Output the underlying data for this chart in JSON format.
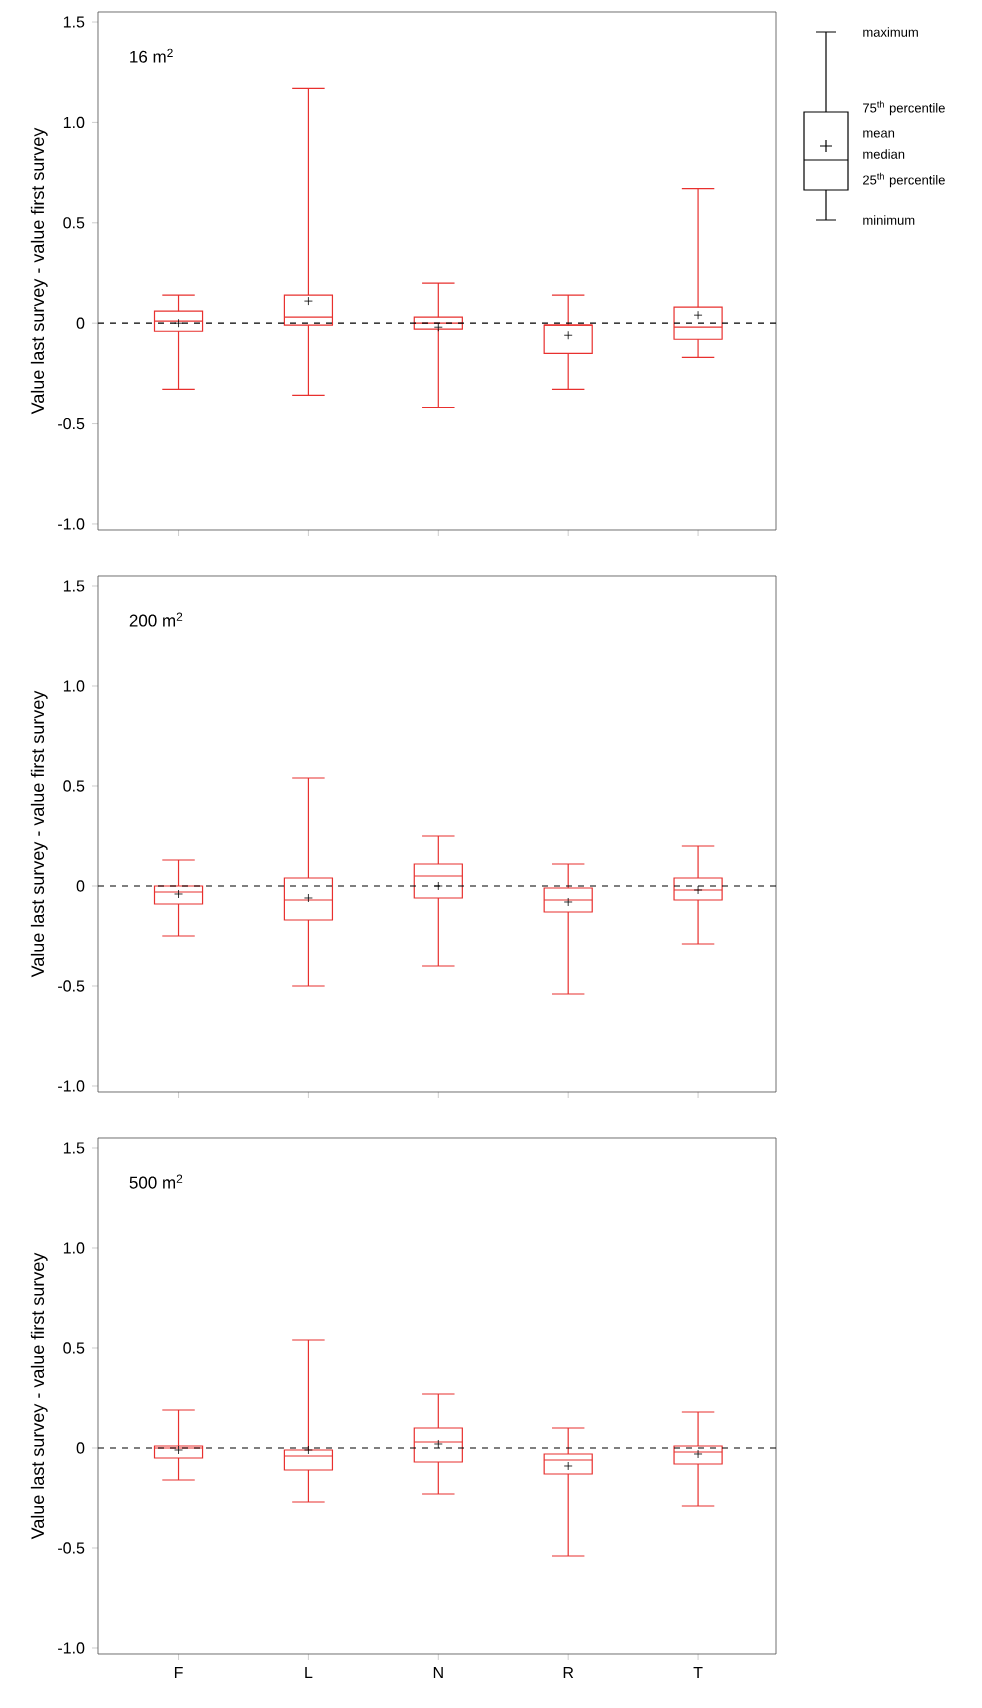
{
  "chart_data": [
    {
      "type": "box",
      "title": "16 m$^{2}$",
      "ylabel": "Value last survey - value first survey",
      "color": "#e8302e",
      "categories": [
        null,
        null,
        null,
        null,
        null
      ],
      "ylim": [
        -1.03,
        1.55
      ],
      "yticks": [
        {
          "value": -1.0,
          "label": "-1.0"
        },
        {
          "value": -0.5,
          "label": "-0.5"
        },
        {
          "value": 0,
          "label": "0"
        },
        {
          "value": 0.5,
          "label": "0.5"
        },
        {
          "value": 1.0,
          "label": "1.0"
        },
        {
          "value": 1.5,
          "label": "1.5"
        }
      ],
      "ref_lines": [
        {
          "axis": "y",
          "value": 0,
          "color": "#000000",
          "line_style": "dashed"
        }
      ],
      "boxes": [
        {
          "low": -0.33,
          "q1": -0.04,
          "median": 0.01,
          "q3": 0.06,
          "high": 0.14,
          "mean": 0.0
        },
        {
          "low": -0.36,
          "q1": -0.01,
          "median": 0.03,
          "q3": 0.14,
          "high": 1.17,
          "mean": 0.11
        },
        {
          "low": -0.42,
          "q1": -0.03,
          "median": 0.0,
          "q3": 0.03,
          "high": 0.2,
          "mean": -0.02
        },
        {
          "low": -0.33,
          "q1": -0.15,
          "median": -0.01,
          "q3": -0.01,
          "high": 0.14,
          "mean": -0.06
        },
        {
          "low": -0.17,
          "q1": -0.08,
          "median": -0.02,
          "q3": 0.08,
          "high": 0.67,
          "mean": 0.04
        }
      ],
      "annotations": [
        "maximum",
        "75$^{th}$ percentile",
        "mean",
        "median",
        "25$^{th}$ percentile",
        "minimum"
      ]
    },
    {
      "type": "box",
      "title": "200 m$^{2}$",
      "ylabel": "Value last survey - value first survey",
      "color": "#e8302e",
      "categories": [
        null,
        null,
        null,
        null,
        null
      ],
      "ylim": [
        -1.03,
        1.55
      ],
      "yticks": [
        {
          "value": -1.0,
          "label": "-1.0"
        },
        {
          "value": -0.5,
          "label": "-0.5"
        },
        {
          "value": 0,
          "label": "0"
        },
        {
          "value": 0.5,
          "label": "0.5"
        },
        {
          "value": 1.0,
          "label": "1.0"
        },
        {
          "value": 1.5,
          "label": "1.5"
        }
      ],
      "ref_lines": [
        {
          "axis": "y",
          "value": 0,
          "color": "#000000",
          "line_style": "dashed"
        }
      ],
      "boxes": [
        {
          "low": -0.25,
          "q1": -0.09,
          "median": -0.03,
          "q3": 0.0,
          "high": 0.13,
          "mean": -0.04
        },
        {
          "low": -0.5,
          "q1": -0.17,
          "median": -0.07,
          "q3": 0.04,
          "high": 0.54,
          "mean": -0.06
        },
        {
          "low": -0.4,
          "q1": -0.06,
          "median": 0.05,
          "q3": 0.11,
          "high": 0.25,
          "mean": 0.0
        },
        {
          "low": -0.54,
          "q1": -0.13,
          "median": -0.07,
          "q3": -0.01,
          "high": 0.11,
          "mean": -0.08
        },
        {
          "low": -0.29,
          "q1": -0.07,
          "median": -0.02,
          "q3": 0.04,
          "high": 0.2,
          "mean": -0.02
        }
      ]
    },
    {
      "type": "box",
      "title": "500 m$^{2}$",
      "ylabel": "Value last survey - value first survey",
      "color": "#e8302e",
      "categories": [
        "F",
        "L",
        "N",
        "R",
        "T"
      ],
      "ylim": [
        -1.03,
        1.55
      ],
      "yticks": [
        {
          "value": -1.0,
          "label": "-1.0"
        },
        {
          "value": -0.5,
          "label": "-0.5"
        },
        {
          "value": 0,
          "label": "0"
        },
        {
          "value": 0.5,
          "label": "0.5"
        },
        {
          "value": 1.0,
          "label": "1.0"
        },
        {
          "value": 1.5,
          "label": "1.5"
        }
      ],
      "ref_lines": [
        {
          "axis": "y",
          "value": 0,
          "color": "#000000",
          "line_style": "dashed"
        }
      ],
      "boxes": [
        {
          "low": -0.16,
          "q1": -0.05,
          "median": 0.0,
          "q3": 0.01,
          "high": 0.19,
          "mean": -0.01
        },
        {
          "low": -0.27,
          "q1": -0.11,
          "median": -0.04,
          "q3": -0.01,
          "high": 0.54,
          "mean": -0.01
        },
        {
          "low": -0.23,
          "q1": -0.07,
          "median": 0.03,
          "q3": 0.1,
          "high": 0.27,
          "mean": 0.02
        },
        {
          "low": -0.54,
          "q1": -0.13,
          "median": -0.06,
          "q3": -0.03,
          "high": 0.1,
          "mean": -0.09
        },
        {
          "low": -0.29,
          "q1": -0.08,
          "median": -0.02,
          "q3": 0.01,
          "high": 0.18,
          "mean": -0.03
        }
      ]
    }
  ]
}
